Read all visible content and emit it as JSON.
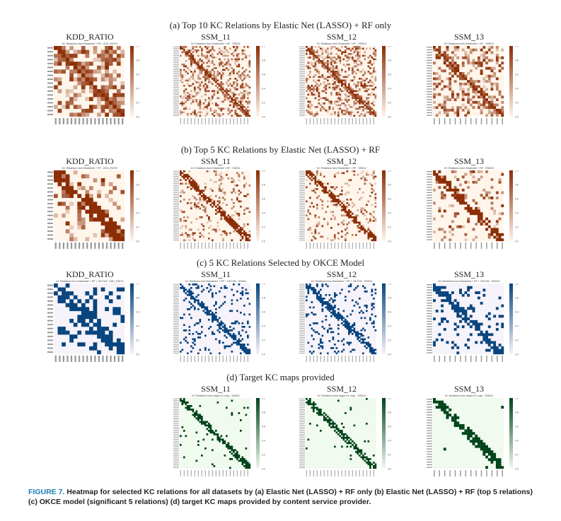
{
  "rows": [
    {
      "title": "(a) Top 10 KC Relations by Elastic Net (LASSO) + RF only",
      "palette": "orange",
      "panels": [
        {
          "title": "KDD_RATIO",
          "subtitle": "KC Relations from ElasticNet + RF : KDD_RATIO"
        },
        {
          "title": "SSM_11",
          "subtitle": "KC Relations from ElasticNet + RF : SSM11"
        },
        {
          "title": "SSM_12",
          "subtitle": "KC Relations from ElasticNet + RF : SSM12"
        },
        {
          "title": "SSM_13",
          "subtitle": "KC Relations from ElasticNet + RF : SSM13"
        }
      ]
    },
    {
      "title": "(b) Top 5 KC Relations by Elastic Net (LASSO) + RF",
      "palette": "orange",
      "panels": [
        {
          "title": "KDD_RATIO",
          "subtitle": "KC Relations from ElasticNet + RF : KDD_RATIO"
        },
        {
          "title": "SSM_11",
          "subtitle": "KC Relations from ElasticNet + RF : SSM11"
        },
        {
          "title": "SSM_12",
          "subtitle": "KC Relations from ElasticNet + RF : SSM12"
        },
        {
          "title": "SSM_13",
          "subtitle": "KC Relations from ElasticNet + RF : SSM13"
        }
      ]
    },
    {
      "title": "(c) 5 KC Relations Selected by OKCE Model",
      "palette": "blue",
      "panels": [
        {
          "title": "KDD_RATIO",
          "subtitle": "KC Relations from ElasticNet + RF + OKTVM : KDD_RATIO"
        },
        {
          "title": "SSM_11",
          "subtitle": "KC Relations from ElasticNet + RF + OKTVM : SSM11"
        },
        {
          "title": "SSM_12",
          "subtitle": "KC Relations from ElasticNet + RF + OKTVM : SSM12"
        },
        {
          "title": "SSM_13",
          "subtitle": "KC Relations from ElasticNet + RF + OKTVM : SSM13"
        }
      ]
    },
    {
      "title": "(d) Target KC maps provided",
      "palette": "green",
      "panels": [
        {
          "title": "SSM_11",
          "subtitle": "KC Relations from target KC map : SSM11"
        },
        {
          "title": "SSM_12",
          "subtitle": "KC Relations from target KC map : SSM12"
        },
        {
          "title": "SSM_13",
          "subtitle": "KC Relations from target KC map : SSM13"
        }
      ]
    }
  ],
  "colorbar_ticks": [
    "0.0",
    "0.2",
    "0.4",
    "0.6",
    "0.8",
    "1.0"
  ],
  "caption": {
    "label": "FIGURE 7.",
    "text": "Heatmap for selected KC relations for all datasets by (a) Elastic Net (LASSO) + RF only (b) Elastic Net (LASSO) + RF (top 5 relations) (c) OKCE model (significant 5 relations) (d) target KC maps provided by content service provider."
  },
  "colors": {
    "orange": "#8c2d04",
    "blue": "#08457e",
    "green": "#00441b",
    "caption_label": "#1a7fb5"
  }
}
